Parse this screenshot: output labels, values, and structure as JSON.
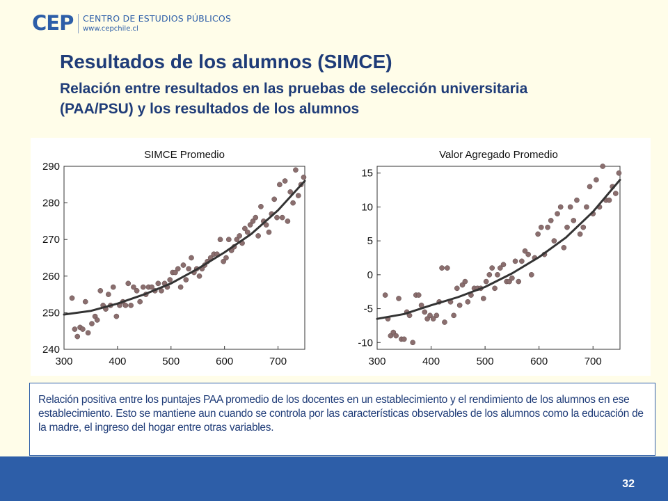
{
  "header": {
    "logo_mark": "CEP",
    "logo_name": "CENTRO DE ESTUDIOS PÚBLICOS",
    "logo_url": "www.cepchile.cl"
  },
  "slide": {
    "title": "Resultados de los alumnos (SIMCE)",
    "subtitle": "Relación entre resultados en las pruebas de selección universitaria (PAA/PSU) y los resultados de los alumnos"
  },
  "note": {
    "text": "Relación positiva entre los puntajes PAA promedio de los docentes en un establecimiento y el rendimiento de los alumnos en ese establecimiento. Esto se mantiene aun cuando se controla por las características observables de los alumnos como la educación de la madre, el ingreso del hogar entre otras variables."
  },
  "footer": {
    "page_number": "32"
  },
  "colors": {
    "accent": "#2d5ea8",
    "title": "#1f3c78",
    "background": "#fffde9",
    "point": "#8a6e6e",
    "fit_line": "#333333"
  },
  "chart_data": [
    {
      "type": "scatter",
      "title": "SIMCE Promedio",
      "xlabel": "",
      "ylabel": "",
      "xlim": [
        300,
        750
      ],
      "ylim": [
        240,
        290
      ],
      "xticks": [
        "300",
        "400",
        "500",
        "600",
        "700"
      ],
      "yticks": [
        "240",
        "250",
        "260",
        "270",
        "280",
        "290"
      ],
      "grid": false,
      "x": [
        315,
        320,
        325,
        330,
        335,
        340,
        345,
        352,
        358,
        362,
        368,
        373,
        378,
        383,
        387,
        392,
        398,
        404,
        410,
        415,
        420,
        425,
        430,
        436,
        442,
        448,
        453,
        458,
        464,
        470,
        476,
        482,
        488,
        493,
        498,
        503,
        508,
        513,
        518,
        523,
        528,
        533,
        538,
        543,
        548,
        553,
        558,
        563,
        568,
        574,
        580,
        586,
        592,
        598,
        603,
        608,
        613,
        618,
        623,
        628,
        633,
        638,
        643,
        648,
        653,
        658,
        663,
        668,
        673,
        678,
        683,
        688,
        693,
        698,
        703,
        708,
        713,
        718,
        723,
        728,
        733,
        738,
        743,
        748
      ],
      "y": [
        254,
        245.5,
        243.5,
        246,
        245.5,
        253,
        244.5,
        247,
        249,
        248,
        256,
        252,
        251,
        255,
        252,
        257,
        249,
        252,
        253,
        252,
        258,
        252,
        257,
        256,
        253,
        257,
        255,
        257,
        257,
        256,
        258,
        256,
        258,
        257,
        259,
        261,
        261,
        262,
        257,
        263,
        259,
        262,
        265,
        261,
        262,
        260,
        262,
        263,
        264,
        265,
        266,
        266,
        270,
        264,
        265,
        270,
        267,
        268,
        270,
        271,
        269,
        273,
        272,
        274,
        275,
        276,
        271,
        279,
        275,
        274,
        272,
        277,
        281,
        276,
        285,
        276,
        286,
        275,
        283,
        280,
        289,
        282,
        285,
        287
      ],
      "fit": {
        "x": [
          300,
          350,
          400,
          450,
          500,
          550,
          600,
          650,
          700,
          750
        ],
        "y": [
          249.5,
          250.5,
          252.5,
          255,
          258,
          262,
          266.5,
          271.5,
          278,
          286
        ]
      }
    },
    {
      "type": "scatter",
      "title": "Valor Agregado Promedio",
      "xlabel": "",
      "ylabel": "",
      "xlim": [
        300,
        750
      ],
      "ylim": [
        -11,
        16
      ],
      "xticks": [
        "300",
        "400",
        "500",
        "600",
        "700"
      ],
      "yticks": [
        "-10",
        "-5",
        "0",
        "5",
        "10",
        "15"
      ],
      "grid": false,
      "x": [
        315,
        320,
        325,
        330,
        335,
        340,
        345,
        350,
        355,
        360,
        366,
        372,
        377,
        382,
        388,
        393,
        398,
        404,
        410,
        415,
        420,
        425,
        430,
        436,
        442,
        448,
        453,
        458,
        463,
        468,
        474,
        480,
        486,
        492,
        497,
        502,
        508,
        513,
        518,
        523,
        528,
        534,
        540,
        545,
        550,
        556,
        562,
        568,
        574,
        580,
        586,
        592,
        598,
        604,
        610,
        616,
        622,
        628,
        634,
        640,
        646,
        652,
        658,
        664,
        670,
        676,
        682,
        688,
        694,
        700,
        706,
        712,
        718,
        724,
        730,
        736,
        742,
        748
      ],
      "y": [
        -3,
        -6.5,
        -9,
        -8.5,
        -9,
        -3.5,
        -9.5,
        -9.5,
        -5.5,
        -6,
        -10,
        -3,
        -3,
        -4.5,
        -5.5,
        -6.5,
        -6,
        -6.5,
        -6,
        -4,
        1,
        -7,
        1,
        -4,
        -6,
        -2,
        -4.5,
        -1.5,
        -1,
        -4,
        -3,
        -2,
        -2,
        -2,
        -3.5,
        -1,
        0,
        1,
        -2,
        0,
        1,
        1.5,
        -1,
        -1,
        -0.5,
        2,
        -1,
        2,
        3.5,
        3,
        0,
        2.5,
        6,
        7,
        3,
        7,
        8,
        5,
        9,
        10,
        4,
        7,
        10,
        8,
        11,
        6,
        7,
        10,
        13,
        9,
        14,
        10,
        16,
        11,
        11,
        13,
        12,
        15
      ],
      "fit": {
        "x": [
          300,
          350,
          400,
          450,
          500,
          550,
          600,
          650,
          700,
          750
        ],
        "y": [
          -6.5,
          -5.8,
          -4.5,
          -3.3,
          -1.8,
          0.2,
          2.6,
          5.5,
          9.3,
          14
        ]
      }
    }
  ]
}
